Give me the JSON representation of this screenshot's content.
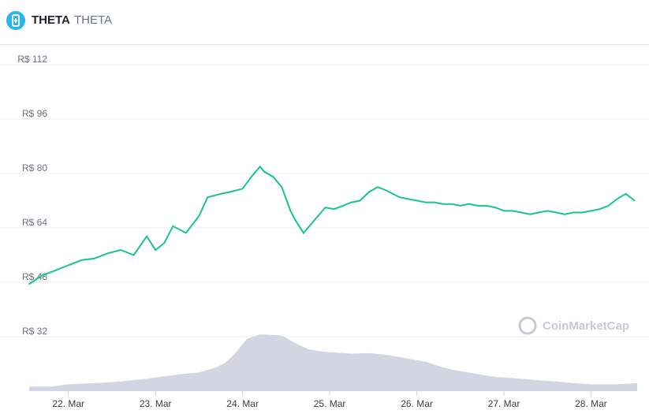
{
  "header": {
    "symbol": "THETA",
    "name": "THETA",
    "logo_icon": "theta-logo-icon"
  },
  "watermark": "CoinMarketCap",
  "colors": {
    "price_line": "#16c784",
    "volume_fill": "#d1d6e2",
    "grid": "#eef0f3",
    "logo": "#29b6e8"
  },
  "chart_data": {
    "type": "line",
    "yticks": [
      "R$ 112",
      "R$ 96",
      "R$ 80",
      "R$ 64",
      "R$ 48",
      "R$ 32"
    ],
    "ytick_values": [
      112,
      96,
      80,
      64,
      48,
      32
    ],
    "ylim": [
      16,
      118
    ],
    "xticks": [
      "22. Mar",
      "23. Mar",
      "24. Mar",
      "25. Mar",
      "26. Mar",
      "27. Mar",
      "28. Mar"
    ],
    "xtick_values": [
      0,
      1,
      2,
      3,
      4,
      5,
      6
    ],
    "xlim": [
      -0.45,
      6.53
    ],
    "grid": true,
    "legend": "none",
    "price_series": {
      "name": "",
      "x": [
        -0.45,
        -0.3,
        -0.15,
        0,
        0.15,
        0.3,
        0.45,
        0.6,
        0.75,
        0.9,
        1.0,
        1.1,
        1.2,
        1.35,
        1.5,
        1.6,
        1.75,
        1.85,
        2.0,
        2.1,
        2.2,
        2.25,
        2.35,
        2.45,
        2.55,
        2.6,
        2.7,
        2.8,
        2.9,
        2.95,
        3.05,
        3.15,
        3.25,
        3.35,
        3.45,
        3.55,
        3.65,
        3.8,
        3.9,
        4.0,
        4.1,
        4.2,
        4.3,
        4.4,
        4.5,
        4.6,
        4.7,
        4.8,
        4.9,
        5.0,
        5.1,
        5.2,
        5.3,
        5.4,
        5.5,
        5.6,
        5.7,
        5.8,
        5.9,
        6.0,
        6.1,
        6.2,
        6.3,
        6.4,
        6.5
      ],
      "y": [
        47.5,
        50,
        51.5,
        53,
        54.5,
        55,
        56.5,
        57.5,
        56,
        61.5,
        57.5,
        59.5,
        64.5,
        62.5,
        67.5,
        73,
        74,
        74.5,
        75.5,
        79,
        82,
        80.5,
        79,
        76,
        69,
        66.5,
        62.5,
        65.5,
        68.5,
        70,
        69.5,
        70.5,
        71.5,
        72,
        74.5,
        76,
        75,
        73,
        72.5,
        72,
        71.5,
        71.5,
        71,
        71,
        70.5,
        71,
        70.5,
        70.5,
        70,
        69,
        69,
        68.5,
        68,
        68.5,
        69,
        68.5,
        68,
        68.5,
        68.5,
        69,
        69.5,
        70.5,
        72.5,
        74,
        72
      ]
    },
    "volume_series": {
      "name": "",
      "relative_height": [
        0.08,
        0.08,
        0.12,
        0.14,
        0.17,
        0.22,
        0.26,
        0.3,
        0.33,
        0.42,
        0.5,
        0.64,
        0.92,
        1.0,
        0.98,
        0.85,
        0.74,
        0.7,
        0.68,
        0.66,
        0.67,
        0.64,
        0.6,
        0.56,
        0.52,
        0.44,
        0.38,
        0.34,
        0.3,
        0.26,
        0.24,
        0.22,
        0.19,
        0.17,
        0.14,
        0.12,
        0.12,
        0.14
      ],
      "x": [
        -0.45,
        -0.2,
        0.0,
        0.3,
        0.6,
        0.9,
        1.1,
        1.3,
        1.5,
        1.7,
        1.8,
        1.9,
        2.05,
        2.2,
        2.45,
        2.6,
        2.75,
        2.9,
        3.05,
        3.25,
        3.45,
        3.65,
        3.8,
        3.95,
        4.1,
        4.25,
        4.4,
        4.55,
        4.7,
        4.85,
        5.0,
        5.2,
        5.4,
        5.6,
        5.8,
        6.0,
        6.3,
        6.53
      ]
    }
  }
}
